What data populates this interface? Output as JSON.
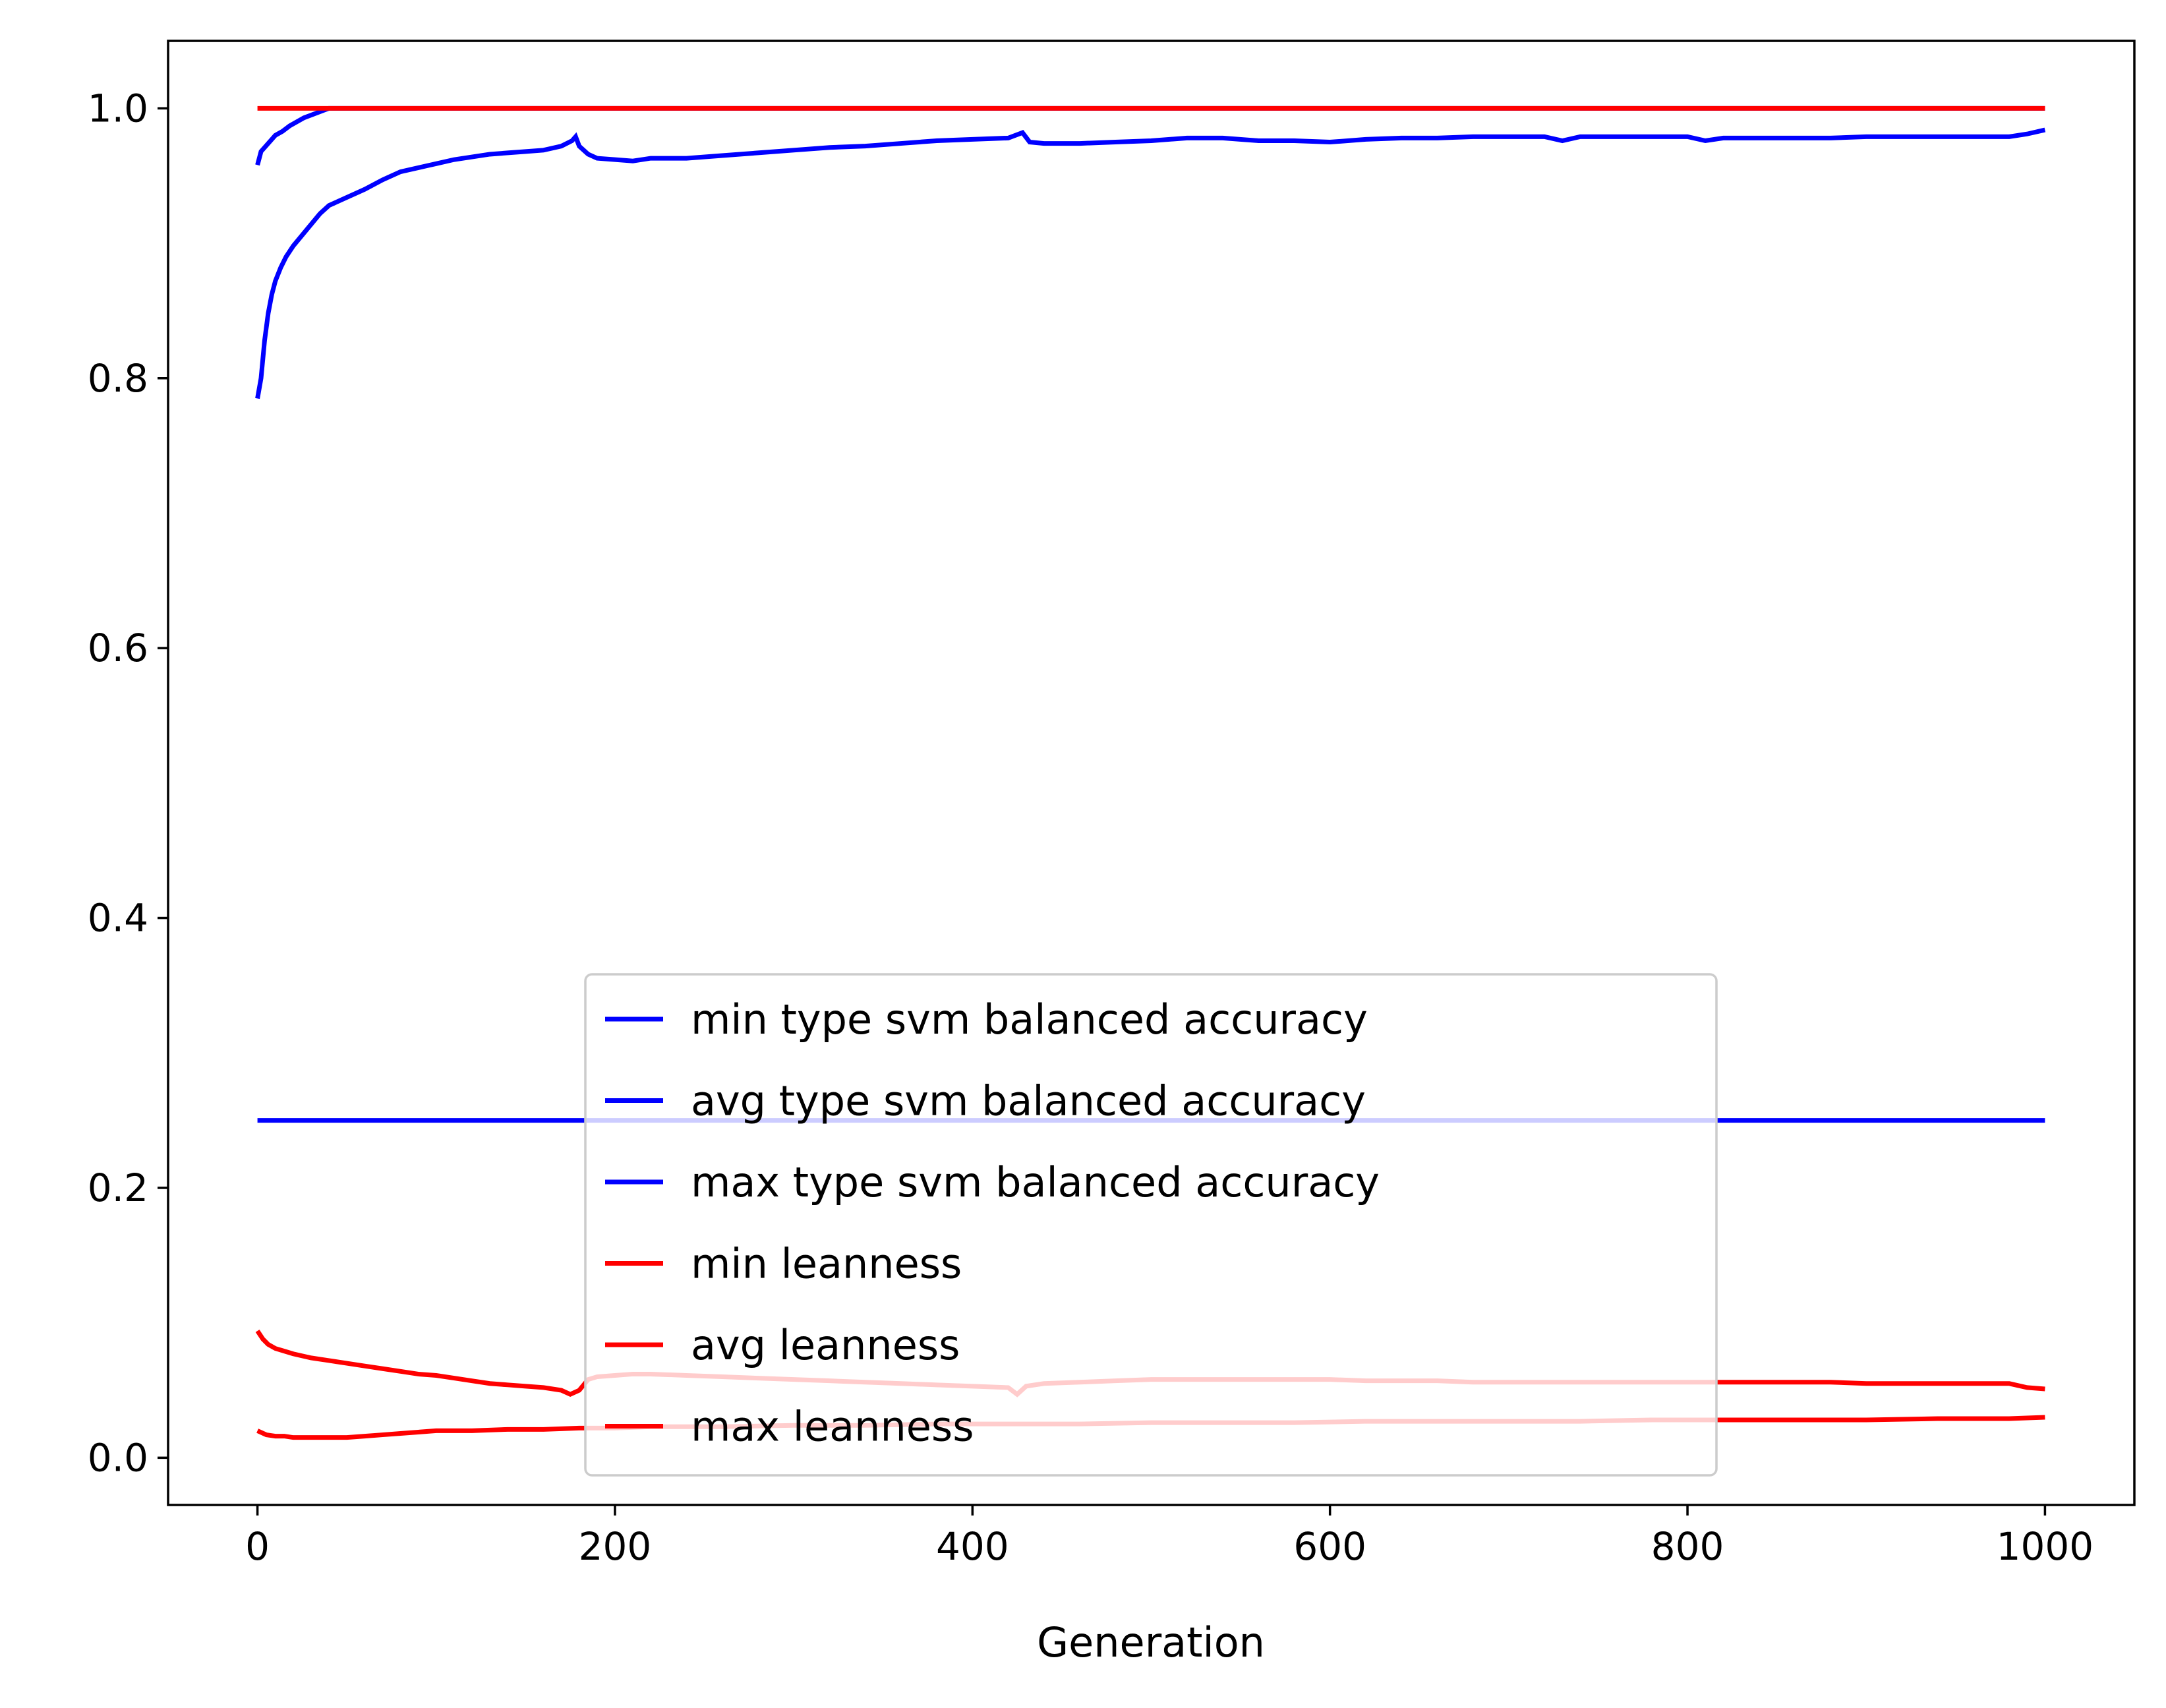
{
  "chart_data": {
    "type": "line",
    "title": "",
    "xlabel": "Generation",
    "ylabel": "",
    "xlim": [
      -50,
      1050
    ],
    "ylim": [
      -0.035,
      1.05
    ],
    "xticks": [
      0,
      200,
      400,
      600,
      800,
      1000
    ],
    "yticks": [
      0.0,
      0.2,
      0.4,
      0.6,
      0.8,
      1.0
    ],
    "xtick_labels": [
      "0",
      "200",
      "400",
      "600",
      "800",
      "1000"
    ],
    "ytick_labels": [
      "0.0",
      "0.2",
      "0.4",
      "0.6",
      "0.8",
      "1.0"
    ],
    "grid": false,
    "legend_position": "lower center",
    "series": [
      {
        "name": "min type svm balanced accuracy",
        "color": "#0000ff",
        "x": [
          0,
          1000
        ],
        "y": [
          0.25,
          0.25
        ]
      },
      {
        "name": "avg type svm balanced accuracy",
        "color": "#0000ff",
        "x": [
          0,
          2,
          4,
          6,
          8,
          10,
          13,
          16,
          20,
          25,
          30,
          35,
          40,
          45,
          50,
          60,
          70,
          80,
          90,
          100,
          110,
          120,
          130,
          140,
          150,
          160,
          170,
          176,
          178,
          180,
          185,
          190,
          200,
          210,
          220,
          240,
          260,
          280,
          300,
          320,
          340,
          360,
          380,
          400,
          420,
          428,
          432,
          440,
          460,
          480,
          500,
          520,
          540,
          560,
          580,
          600,
          620,
          640,
          660,
          680,
          700,
          720,
          730,
          740,
          760,
          780,
          800,
          810,
          820,
          840,
          860,
          880,
          900,
          920,
          940,
          960,
          980,
          990,
          1000
        ],
        "y": [
          0.785,
          0.8,
          0.828,
          0.848,
          0.862,
          0.872,
          0.882,
          0.89,
          0.898,
          0.906,
          0.914,
          0.922,
          0.928,
          0.931,
          0.934,
          0.94,
          0.947,
          0.953,
          0.956,
          0.959,
          0.962,
          0.964,
          0.966,
          0.967,
          0.968,
          0.969,
          0.972,
          0.976,
          0.979,
          0.972,
          0.966,
          0.963,
          0.962,
          0.961,
          0.963,
          0.963,
          0.965,
          0.967,
          0.969,
          0.971,
          0.972,
          0.974,
          0.976,
          0.977,
          0.978,
          0.982,
          0.975,
          0.974,
          0.974,
          0.975,
          0.976,
          0.978,
          0.978,
          0.976,
          0.976,
          0.975,
          0.977,
          0.978,
          0.978,
          0.979,
          0.979,
          0.979,
          0.976,
          0.979,
          0.979,
          0.979,
          0.979,
          0.976,
          0.978,
          0.978,
          0.978,
          0.978,
          0.979,
          0.979,
          0.979,
          0.979,
          0.979,
          0.981,
          0.984
        ]
      },
      {
        "name": "max type svm balanced accuracy",
        "color": "#0000ff",
        "x": [
          0,
          2,
          4,
          6,
          8,
          10,
          14,
          18,
          22,
          26,
          30,
          34,
          38,
          40,
          1000
        ],
        "y": [
          0.958,
          0.968,
          0.971,
          0.974,
          0.977,
          0.98,
          0.983,
          0.987,
          0.99,
          0.993,
          0.995,
          0.997,
          0.999,
          1.0,
          1.0
        ]
      },
      {
        "name": "min leanness",
        "color": "#ff0000",
        "x": [
          0,
          5,
          10,
          15,
          20,
          30,
          40,
          50,
          60,
          70,
          80,
          90,
          100,
          120,
          140,
          160,
          180,
          200,
          220,
          240,
          260,
          300,
          340,
          380,
          420,
          460,
          500,
          540,
          580,
          620,
          660,
          700,
          740,
          780,
          820,
          860,
          900,
          940,
          980,
          1000
        ],
        "y": [
          0.02,
          0.017,
          0.016,
          0.016,
          0.015,
          0.015,
          0.015,
          0.015,
          0.016,
          0.017,
          0.018,
          0.019,
          0.02,
          0.02,
          0.021,
          0.021,
          0.022,
          0.022,
          0.023,
          0.023,
          0.023,
          0.024,
          0.024,
          0.025,
          0.025,
          0.025,
          0.026,
          0.026,
          0.026,
          0.027,
          0.027,
          0.027,
          0.027,
          0.028,
          0.028,
          0.028,
          0.028,
          0.029,
          0.029,
          0.03
        ]
      },
      {
        "name": "avg leanness",
        "color": "#ff0000",
        "x": [
          0,
          3,
          6,
          10,
          15,
          20,
          30,
          40,
          50,
          60,
          70,
          80,
          90,
          100,
          110,
          120,
          130,
          140,
          150,
          160,
          170,
          175,
          180,
          185,
          190,
          200,
          210,
          220,
          240,
          260,
          280,
          300,
          320,
          340,
          360,
          380,
          400,
          420,
          425,
          430,
          440,
          460,
          480,
          500,
          520,
          540,
          560,
          580,
          600,
          620,
          640,
          660,
          680,
          700,
          720,
          740,
          760,
          780,
          800,
          820,
          840,
          860,
          880,
          900,
          920,
          940,
          960,
          980,
          990,
          1000
        ],
        "y": [
          0.094,
          0.088,
          0.084,
          0.081,
          0.079,
          0.077,
          0.074,
          0.072,
          0.07,
          0.068,
          0.066,
          0.064,
          0.062,
          0.061,
          0.059,
          0.057,
          0.055,
          0.054,
          0.053,
          0.052,
          0.05,
          0.047,
          0.05,
          0.058,
          0.06,
          0.061,
          0.062,
          0.062,
          0.061,
          0.06,
          0.059,
          0.058,
          0.057,
          0.056,
          0.055,
          0.054,
          0.053,
          0.052,
          0.047,
          0.053,
          0.055,
          0.056,
          0.057,
          0.058,
          0.058,
          0.058,
          0.058,
          0.058,
          0.058,
          0.057,
          0.057,
          0.057,
          0.056,
          0.056,
          0.056,
          0.056,
          0.056,
          0.056,
          0.056,
          0.056,
          0.056,
          0.056,
          0.056,
          0.055,
          0.055,
          0.055,
          0.055,
          0.055,
          0.052,
          0.051
        ]
      },
      {
        "name": "max leanness",
        "color": "#ff0000",
        "x": [
          0,
          1000
        ],
        "y": [
          1.0,
          1.0
        ]
      }
    ]
  }
}
